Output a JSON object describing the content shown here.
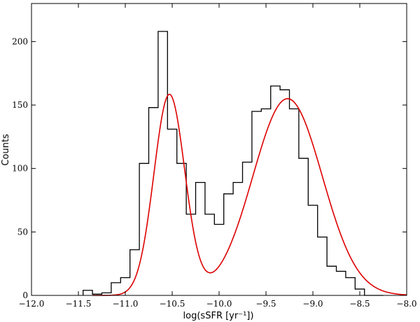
{
  "chart_data": {
    "type": "histogram",
    "xlabel": "log(sSFR [yr⁻¹])",
    "ylabel": "Counts",
    "xlim": [
      -12.0,
      -8.0
    ],
    "ylim": [
      0,
      230
    ],
    "x_ticks": [
      -12.0,
      -11.5,
      -11.0,
      -10.5,
      -10.0,
      -9.5,
      -9.0,
      -8.5,
      -8.0
    ],
    "x_tick_labels": [
      "−12.0",
      "−11.5",
      "−11.0",
      "−10.5",
      "−10.0",
      "−9.5",
      "−9.0",
      "−8.5",
      "−8.0"
    ],
    "y_ticks": [
      0,
      50,
      100,
      150,
      200
    ],
    "y_tick_labels": [
      "0",
      "50",
      "100",
      "150",
      "200"
    ],
    "grid": false,
    "series": [
      {
        "kind": "histogram",
        "color": "#000000",
        "bin_edges": [
          -11.45,
          -11.35,
          -11.25,
          -11.15,
          -11.05,
          -10.95,
          -10.85,
          -10.75,
          -10.65,
          -10.55,
          -10.45,
          -10.35,
          -10.25,
          -10.15,
          -10.05,
          -9.95,
          -9.85,
          -9.75,
          -9.65,
          -9.55,
          -9.45,
          -9.35,
          -9.25,
          -9.15,
          -9.05,
          -8.95,
          -8.85,
          -8.75,
          -8.65,
          -8.55,
          -8.45,
          -8.35,
          -8.25
        ],
        "counts": [
          4,
          1,
          2,
          10,
          14,
          36,
          104,
          148,
          208,
          131,
          104,
          64,
          89,
          64,
          56,
          80,
          89,
          105,
          145,
          147,
          165,
          162,
          147,
          108,
          71,
          46,
          23,
          19,
          14,
          5,
          0,
          0
        ]
      },
      {
        "kind": "fit",
        "color": "#dd0000",
        "model": "double_gaussian",
        "components": [
          {
            "amplitude": 158,
            "mean": -10.53,
            "sigma": 0.165
          },
          {
            "amplitude": 155,
            "mean": -9.27,
            "sigma": 0.37
          }
        ],
        "x_range": [
          -11.35,
          -8.0
        ]
      }
    ]
  }
}
